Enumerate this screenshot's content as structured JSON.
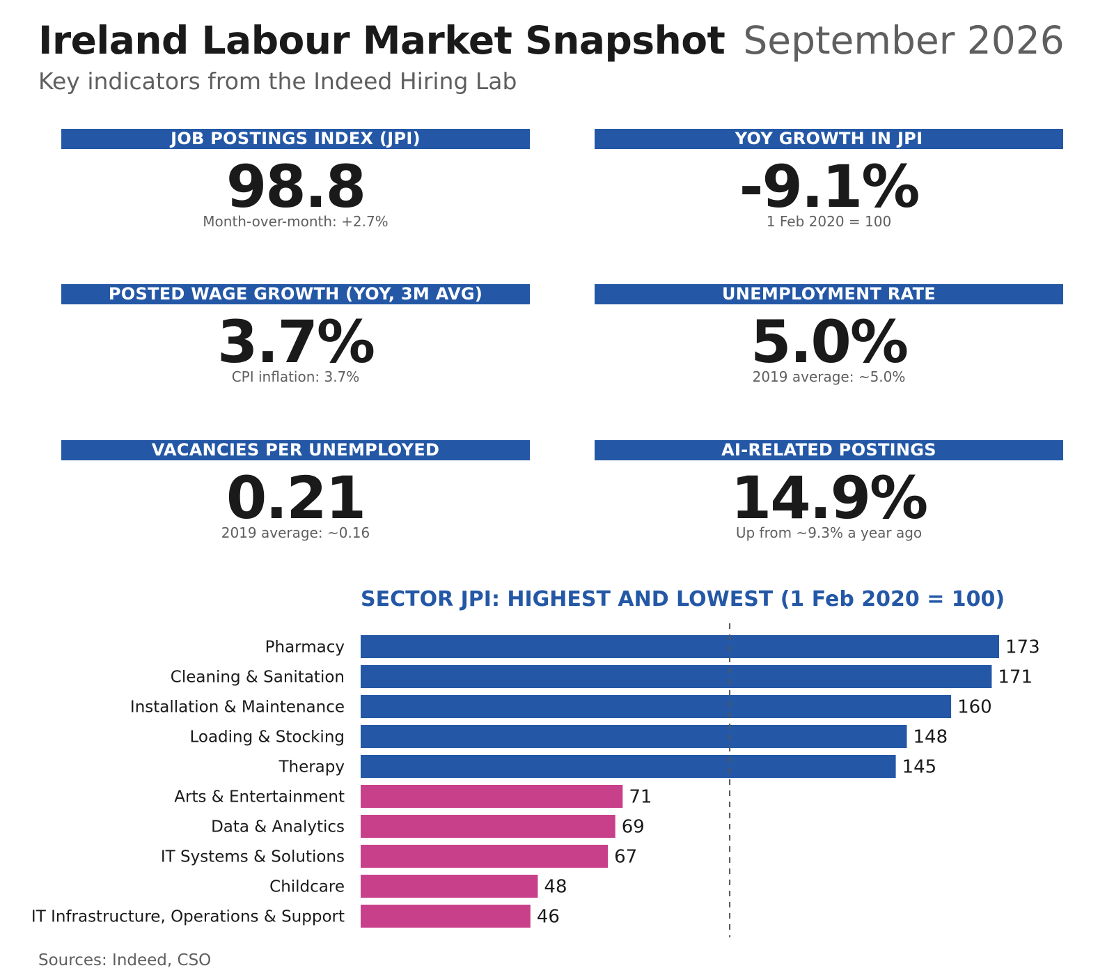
{
  "header": {
    "title": "Ireland Labour Market Snapshot",
    "period": "September 2026",
    "subtitle": "Key indicators from the Indeed Hiring Lab"
  },
  "kpis": [
    {
      "label": "JOB POSTINGS INDEX (JPI)",
      "value": "98.8",
      "note": "Month-over-month: +2.7%"
    },
    {
      "label": "YOY GROWTH IN JPI",
      "value": "-9.1%",
      "note": "1 Feb 2020 = 100"
    },
    {
      "label": "POSTED WAGE GROWTH (YOY, 3M AVG)",
      "value": "3.7%",
      "note": "CPI inflation: 3.7%"
    },
    {
      "label": "UNEMPLOYMENT RATE",
      "value": "5.0%",
      "note": "2019 average: ~5.0%"
    },
    {
      "label": "VACANCIES PER UNEMPLOYED",
      "value": "0.21",
      "note": "2019 average: ~0.16"
    },
    {
      "label": "AI-RELATED POSTINGS",
      "value": "14.9%",
      "note": "Up from ~9.3% a year ago"
    }
  ],
  "colors": {
    "accent": "#2458a6",
    "highest": "#2458a6",
    "lowest": "#c9408a",
    "reference_line": "#555555"
  },
  "chart_data": {
    "type": "bar",
    "orientation": "horizontal",
    "title": "SECTOR JPI: HIGHEST AND LOWEST (1 Feb 2020 = 100)",
    "categories": [
      "Pharmacy",
      "Cleaning & Sanitation",
      "Installation & Maintenance",
      "Loading & Stocking",
      "Therapy",
      "Arts & Entertainment",
      "Data & Analytics",
      "IT Systems & Solutions",
      "Childcare",
      "IT Infrastructure, Operations & Support"
    ],
    "values": [
      173,
      171,
      160,
      148,
      145,
      71,
      69,
      67,
      48,
      46
    ],
    "groups": [
      "highest",
      "highest",
      "highest",
      "highest",
      "highest",
      "lowest",
      "lowest",
      "lowest",
      "lowest",
      "lowest"
    ],
    "reference_line": 100,
    "xlim": [
      0,
      173
    ],
    "data_labels": true,
    "grid": false
  },
  "footer": {
    "source": "Sources: Indeed, CSO"
  }
}
